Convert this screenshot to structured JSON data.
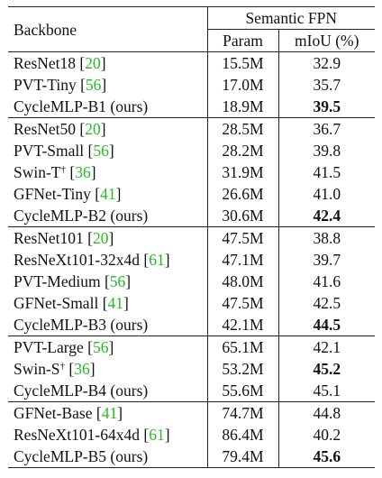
{
  "header": {
    "backbone": "Backbone",
    "group": "Semantic FPN",
    "param": "Param",
    "miou": "mIoU (%)"
  },
  "groups": [
    [
      {
        "name": "ResNet18",
        "dagger": "",
        "cite": "20",
        "suffix": "",
        "param": "15.5M",
        "miou": "32.9",
        "bold": false
      },
      {
        "name": "PVT-Tiny",
        "dagger": "",
        "cite": "56",
        "suffix": "",
        "param": "17.0M",
        "miou": "35.7",
        "bold": false
      },
      {
        "name": "CycleMLP-B1 (ours)",
        "dagger": "",
        "cite": "",
        "suffix": "",
        "param": "18.9M",
        "miou": "39.5",
        "bold": true
      }
    ],
    [
      {
        "name": "ResNet50",
        "dagger": "",
        "cite": "20",
        "suffix": "",
        "param": "28.5M",
        "miou": "36.7",
        "bold": false
      },
      {
        "name": "PVT-Small",
        "dagger": "",
        "cite": "56",
        "suffix": "",
        "param": "28.2M",
        "miou": "39.8",
        "bold": false
      },
      {
        "name": "Swin-T",
        "dagger": "†",
        "cite": "36",
        "suffix": "",
        "param": "31.9M",
        "miou": "41.5",
        "bold": false
      },
      {
        "name": "GFNet-Tiny",
        "dagger": "",
        "cite": "41",
        "suffix": "",
        "param": "26.6M",
        "miou": "41.0",
        "bold": false
      },
      {
        "name": "CycleMLP-B2 (ours)",
        "dagger": "",
        "cite": "",
        "suffix": "",
        "param": "30.6M",
        "miou": "42.4",
        "bold": true
      }
    ],
    [
      {
        "name": "ResNet101",
        "dagger": "",
        "cite": "20",
        "suffix": "",
        "param": "47.5M",
        "miou": "38.8",
        "bold": false
      },
      {
        "name": "ResNeXt101-32x4d",
        "dagger": "",
        "cite": "61",
        "suffix": "",
        "param": "47.1M",
        "miou": "39.7",
        "bold": false
      },
      {
        "name": "PVT-Medium",
        "dagger": "",
        "cite": "56",
        "suffix": "",
        "param": "48.0M",
        "miou": "41.6",
        "bold": false
      },
      {
        "name": "GFNet-Small",
        "dagger": "",
        "cite": "41",
        "suffix": "",
        "param": "47.5M",
        "miou": "42.5",
        "bold": false
      },
      {
        "name": "CycleMLP-B3 (ours)",
        "dagger": "",
        "cite": "",
        "suffix": "",
        "param": "42.1M",
        "miou": "44.5",
        "bold": true
      }
    ],
    [
      {
        "name": "PVT-Large",
        "dagger": "",
        "cite": "56",
        "suffix": "",
        "param": "65.1M",
        "miou": "42.1",
        "bold": false
      },
      {
        "name": "Swin-S",
        "dagger": "†",
        "cite": "36",
        "suffix": "",
        "param": "53.2M",
        "miou": "45.2",
        "bold": true
      },
      {
        "name": "CycleMLP-B4 (ours)",
        "dagger": "",
        "cite": "",
        "suffix": "",
        "param": "55.6M",
        "miou": "45.1",
        "bold": false
      }
    ],
    [
      {
        "name": "GFNet-Base",
        "dagger": "",
        "cite": "41",
        "suffix": "",
        "param": "74.7M",
        "miou": "44.8",
        "bold": false
      },
      {
        "name": "ResNeXt101-64x4d",
        "dagger": "",
        "cite": "61",
        "suffix": "",
        "param": "86.4M",
        "miou": "40.2",
        "bold": false
      },
      {
        "name": "CycleMLP-B5 (ours)",
        "dagger": "",
        "cite": "",
        "suffix": "",
        "param": "79.4M",
        "miou": "45.6",
        "bold": true
      }
    ]
  ]
}
